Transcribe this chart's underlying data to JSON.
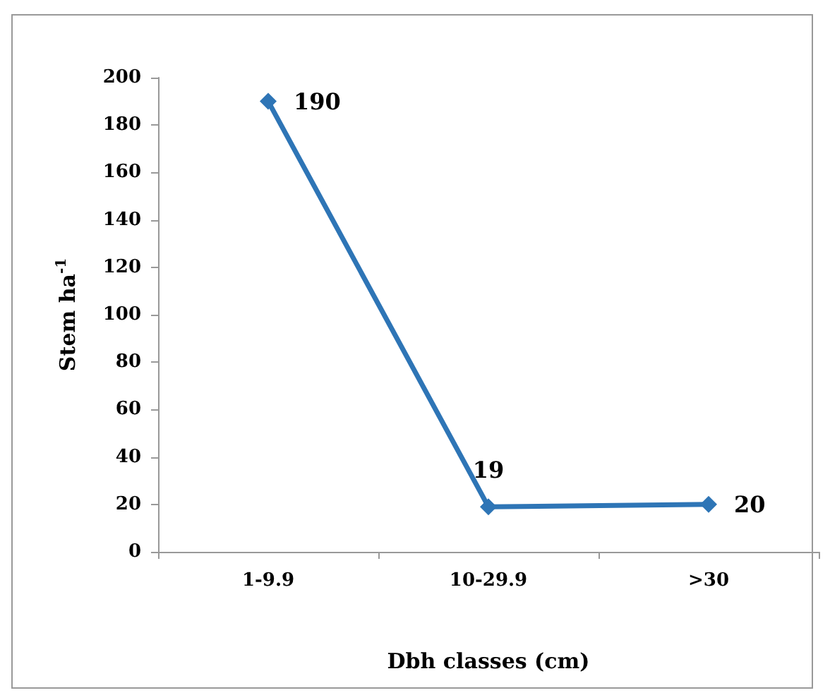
{
  "chart_data": {
    "type": "line",
    "xlabel": "Dbh classes (cm)",
    "ylabel": "Stem ha$^{-1}$",
    "categories": [
      "1-9.9",
      "10-29.9",
      ">30"
    ],
    "series": [
      {
        "color": "#2e75b6",
        "values": [
          190,
          19,
          20
        ]
      }
    ],
    "ylim": [
      0,
      200
    ],
    "yticks": [
      0,
      20,
      40,
      60,
      80,
      100,
      120,
      140,
      160,
      180,
      200
    ],
    "grid": false,
    "marker": "diamond",
    "line_style": "solid",
    "data_labels": true
  }
}
